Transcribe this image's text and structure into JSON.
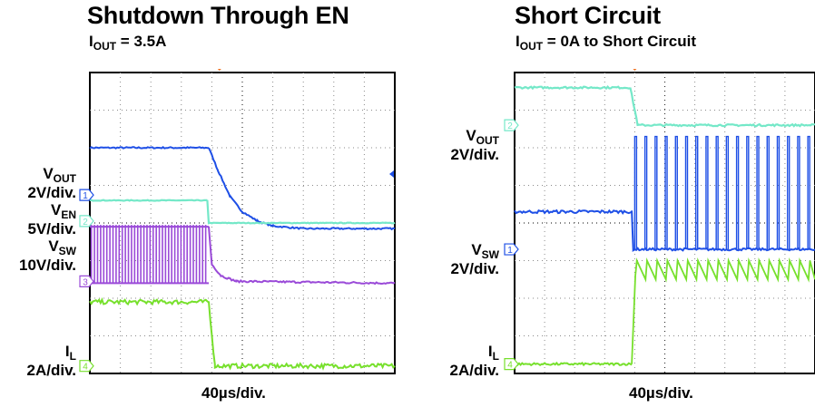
{
  "colors": {
    "ch1_light": "#74e8c8",
    "ch1_blue": "#1e4fe6",
    "ch3_purple": "#9a4ad8",
    "ch4_green": "#77e02c",
    "trigger": "#f07020",
    "grid": "#555555"
  },
  "left": {
    "title": "Shutdown Through EN",
    "subtitle_main": "I",
    "subtitle_sub": "OUT",
    "subtitle_rest": " = 3.5A",
    "timebase": "40µs/div.",
    "ch_vout_main": "V",
    "ch_vout_sub": "OUT",
    "ch_vout_scale": "2V/div.",
    "ch_ven_main": "V",
    "ch_ven_sub": "EN",
    "ch_ven_scale": "5V/div.",
    "ch_vsw_main": "V",
    "ch_vsw_sub": "SW",
    "ch_vsw_scale": "10V/div.",
    "ch_il_main": "I",
    "ch_il_sub": "L",
    "ch_il_scale": "2A/div.",
    "marker_1": "1",
    "marker_2": "2",
    "marker_3": "3",
    "marker_4": "4",
    "trigger_marker": "T"
  },
  "right": {
    "title": "Short Circuit",
    "subtitle_main": "I",
    "subtitle_sub": "OUT",
    "subtitle_rest": " = 0A to Short Circuit",
    "timebase": "40µs/div.",
    "ch_vout_main": "V",
    "ch_vout_sub": "OUT",
    "ch_vout_scale": "2V/div.",
    "ch_vsw_main": "V",
    "ch_vsw_sub": "SW",
    "ch_vsw_scale": "2V/div.",
    "ch_il_main": "I",
    "ch_il_sub": "L",
    "ch_il_scale": "2A/div.",
    "marker_2": "2",
    "marker_1": "1",
    "marker_4": "4",
    "trigger_marker": "T"
  },
  "chart_data": [
    {
      "type": "line",
      "title": "Shutdown Through EN",
      "subtitle": "IOUT = 3.5A",
      "xlabel": "40µs/div.",
      "grid": true,
      "divisions": {
        "x": 10,
        "y": 8
      },
      "trigger_division": 4.25,
      "series": [
        {
          "name": "VOUT",
          "scale": "2V/div.",
          "marker": "1",
          "color": "#1e4fe6",
          "x": [
            0,
            3.9,
            4.2,
            4.6,
            5.0,
            5.5,
            6.0,
            7.0,
            10.0
          ],
          "y": [
            6.0,
            6.0,
            5.4,
            4.7,
            4.3,
            4.05,
            3.92,
            3.85,
            3.85
          ]
        },
        {
          "name": "VEN",
          "scale": "5V/div.",
          "marker": "2",
          "color": "#74e8c8",
          "x": [
            0,
            3.85,
            3.9,
            10.0
          ],
          "y": [
            4.6,
            4.6,
            4.0,
            4.0
          ]
        },
        {
          "name": "VSW",
          "scale": "10V/div.",
          "marker": "3",
          "color": "#9a4ad8",
          "note": "switching ~38 pulses between 2.4 and 3.9 div until 3.9 div, then decays to 2.4 div",
          "x": [
            0,
            3.9,
            4.3,
            10.0
          ],
          "y": [
            3.9,
            3.9,
            2.6,
            2.4
          ]
        },
        {
          "name": "IL",
          "scale": "2A/div.",
          "marker": "4",
          "color": "#77e02c",
          "x": [
            0,
            3.9,
            4.1,
            10.0
          ],
          "y": [
            1.9,
            1.9,
            0.2,
            0.2
          ]
        }
      ]
    },
    {
      "type": "line",
      "title": "Short Circuit",
      "subtitle": "IOUT = 0A to Short Circuit",
      "xlabel": "40µs/div.",
      "grid": true,
      "divisions": {
        "x": 10,
        "y": 8
      },
      "trigger_division": 4.0,
      "series": [
        {
          "name": "VOUT",
          "scale": "2V/div.",
          "marker": "2",
          "color": "#74e8c8",
          "x": [
            0,
            3.85,
            4.1,
            10.0
          ],
          "y": [
            7.6,
            7.6,
            6.6,
            6.6
          ]
        },
        {
          "name": "VSW",
          "scale": "2V/div.",
          "marker": "1",
          "color": "#1e4fe6",
          "note": "after short, ~18 narrow pulses reaching ~6.3 div with base ~3.3 div",
          "x": [
            0,
            3.9,
            4.0,
            10.0
          ],
          "y": [
            4.3,
            4.3,
            3.3,
            3.3
          ]
        },
        {
          "name": "IL",
          "scale": "2A/div.",
          "marker": "4",
          "color": "#77e02c",
          "note": "sawtooth ripple between ~2.5 and ~3.0 div after short",
          "x": [
            0,
            3.9,
            4.05,
            10.0
          ],
          "y": [
            0.25,
            0.25,
            2.6,
            2.7
          ]
        }
      ]
    }
  ]
}
